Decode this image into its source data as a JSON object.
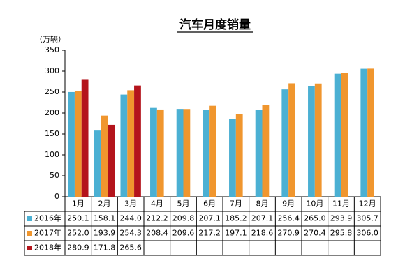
{
  "chart_data": {
    "type": "bar",
    "title": "汽车月度销量",
    "y_label": "（万辆）",
    "categories": [
      "1月",
      "2月",
      "3月",
      "4月",
      "5月",
      "6月",
      "7月",
      "8月",
      "9月",
      "10月",
      "11月",
      "12月"
    ],
    "series": [
      {
        "name": "2016年",
        "color": "#4bb0d3",
        "values": [
          250.1,
          158.1,
          244.0,
          212.2,
          209.8,
          207.1,
          185.2,
          207.1,
          256.4,
          265.0,
          293.9,
          305.7
        ],
        "value_labels": [
          "250.1",
          "158.1",
          "244.0",
          "212.2",
          "209.8",
          "207.1",
          "185.2",
          "207.1",
          "256.4",
          "265.0",
          "293.9",
          "305.7"
        ]
      },
      {
        "name": "2017年",
        "color": "#f0962e",
        "values": [
          252.0,
          193.9,
          254.3,
          208.4,
          209.6,
          217.2,
          197.1,
          218.6,
          270.9,
          270.4,
          295.8,
          306.0
        ],
        "value_labels": [
          "252.0",
          "193.9",
          "254.3",
          "208.4",
          "209.6",
          "217.2",
          "197.1",
          "218.6",
          "270.9",
          "270.4",
          "295.8",
          "306.0"
        ]
      },
      {
        "name": "2018年",
        "color": "#b4141c",
        "values": [
          280.9,
          171.8,
          265.6,
          null,
          null,
          null,
          null,
          null,
          null,
          null,
          null,
          null
        ],
        "value_labels": [
          "280.9",
          "171.8",
          "265.6",
          null,
          null,
          null,
          null,
          null,
          null,
          null,
          null,
          null
        ]
      }
    ],
    "ylim": [
      0,
      350
    ],
    "yticks": [
      0,
      50,
      100,
      150,
      200,
      250,
      300,
      350
    ],
    "grid": false
  }
}
